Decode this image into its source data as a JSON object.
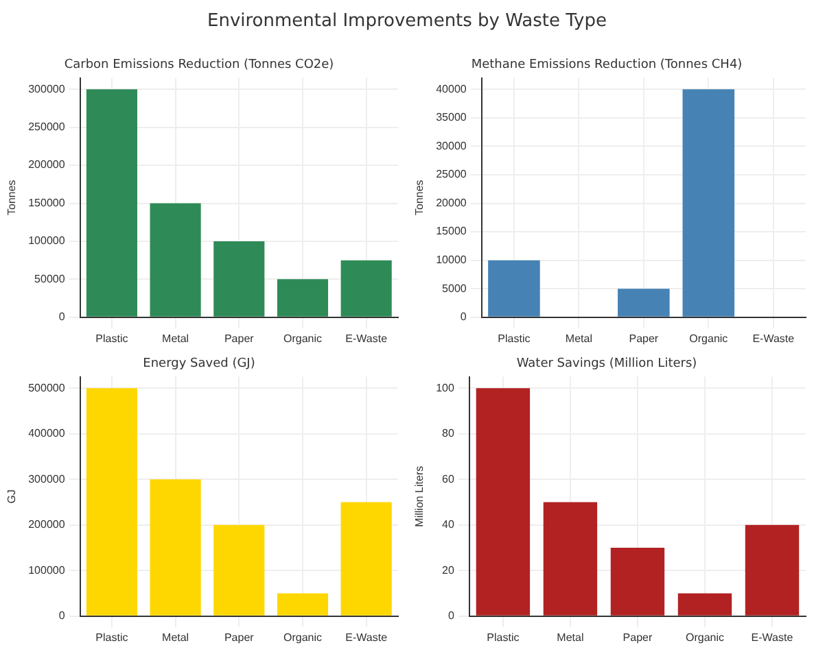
{
  "chart_data": [
    {
      "type": "bar",
      "title": "Carbon Emissions Reduction (Tonnes CO2e)",
      "ylabel": "Tonnes",
      "annotations": [
        "Environmental Improvements by Waste Type"
      ],
      "categories": [
        "Plastic",
        "Metal",
        "Paper",
        "Organic",
        "E-Waste"
      ],
      "values": [
        300000,
        150000,
        100000,
        50000,
        75000
      ],
      "color": "#2e8b57",
      "ylim": [
        0,
        315000
      ],
      "yticks": [
        0,
        50000,
        100000,
        150000,
        200000,
        250000,
        300000
      ],
      "grid": true
    },
    {
      "type": "bar",
      "title": "Methane Emissions Reduction (Tonnes CH4)",
      "ylabel": "Tonnes",
      "categories": [
        "Plastic",
        "Metal",
        "Paper",
        "Organic",
        "E-Waste"
      ],
      "values": [
        10000,
        0,
        5000,
        40000,
        0
      ],
      "color": "#4682b4",
      "ylim": [
        0,
        42000
      ],
      "yticks": [
        0,
        5000,
        10000,
        15000,
        20000,
        25000,
        30000,
        35000,
        40000
      ],
      "grid": true
    },
    {
      "type": "bar",
      "title": "Energy Saved (GJ)",
      "ylabel": "GJ",
      "categories": [
        "Plastic",
        "Metal",
        "Paper",
        "Organic",
        "E-Waste"
      ],
      "values": [
        500000,
        300000,
        200000,
        50000,
        250000
      ],
      "color": "#ffd700",
      "ylim": [
        0,
        525000
      ],
      "yticks": [
        0,
        100000,
        200000,
        300000,
        400000,
        500000
      ],
      "grid": true
    },
    {
      "type": "bar",
      "title": "Water Savings (Million Liters)",
      "ylabel": "Million Liters",
      "categories": [
        "Plastic",
        "Metal",
        "Paper",
        "Organic",
        "E-Waste"
      ],
      "values": [
        100,
        50,
        30,
        10,
        40
      ],
      "color": "#b22222",
      "ylim": [
        0,
        105
      ],
      "yticks": [
        0,
        20,
        40,
        60,
        80,
        100
      ],
      "grid": true
    }
  ]
}
